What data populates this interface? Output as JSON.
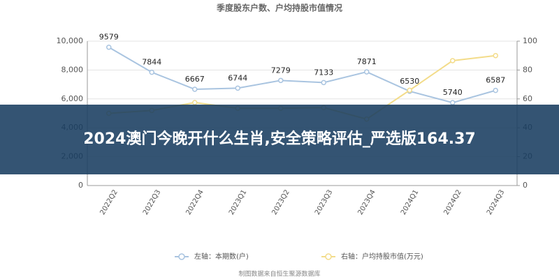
{
  "chart_data": {
    "type": "line",
    "title": "季度股东户数、户均持股市值情况",
    "categories": [
      "2022Q2",
      "2022Q3",
      "2022Q4",
      "2023Q1",
      "2023Q2",
      "2023Q3",
      "2023Q4",
      "2024Q1",
      "2024Q2",
      "2024Q3"
    ],
    "series": [
      {
        "name": "左轴：本期数(户)",
        "color": "#a9c4e0",
        "values": [
          9579,
          7844,
          6667,
          6744,
          7279,
          7133,
          7871,
          6530,
          5740,
          6587
        ]
      },
      {
        "name": "右轴：户均持股市值(万元)",
        "color": "#f3dc8a",
        "axis": "y2",
        "values": [
          50,
          52,
          57.5,
          53.5,
          53.5,
          54,
          46,
          66,
          86.5,
          90
        ]
      }
    ],
    "ylim": [
      0,
      10000
    ],
    "yticks": [
      0,
      {
        "value": 2000,
        "label": "2,000"
      },
      {
        "value": 4000,
        "label": "4,000"
      },
      {
        "value": 6000,
        "label": "6,000"
      },
      {
        "value": 8000,
        "label": "8,000"
      },
      {
        "value": 10000,
        "label": "10,000"
      }
    ],
    "y2lim": [
      0,
      100
    ],
    "y2ticks": [
      0,
      20,
      40,
      60,
      80,
      100
    ],
    "grid": true,
    "source": "制图数据来自恒生聚源数据库"
  },
  "overlay": {
    "text": "2024澳门今晚开什么生肖,安全策略评估_严选版164.37"
  }
}
